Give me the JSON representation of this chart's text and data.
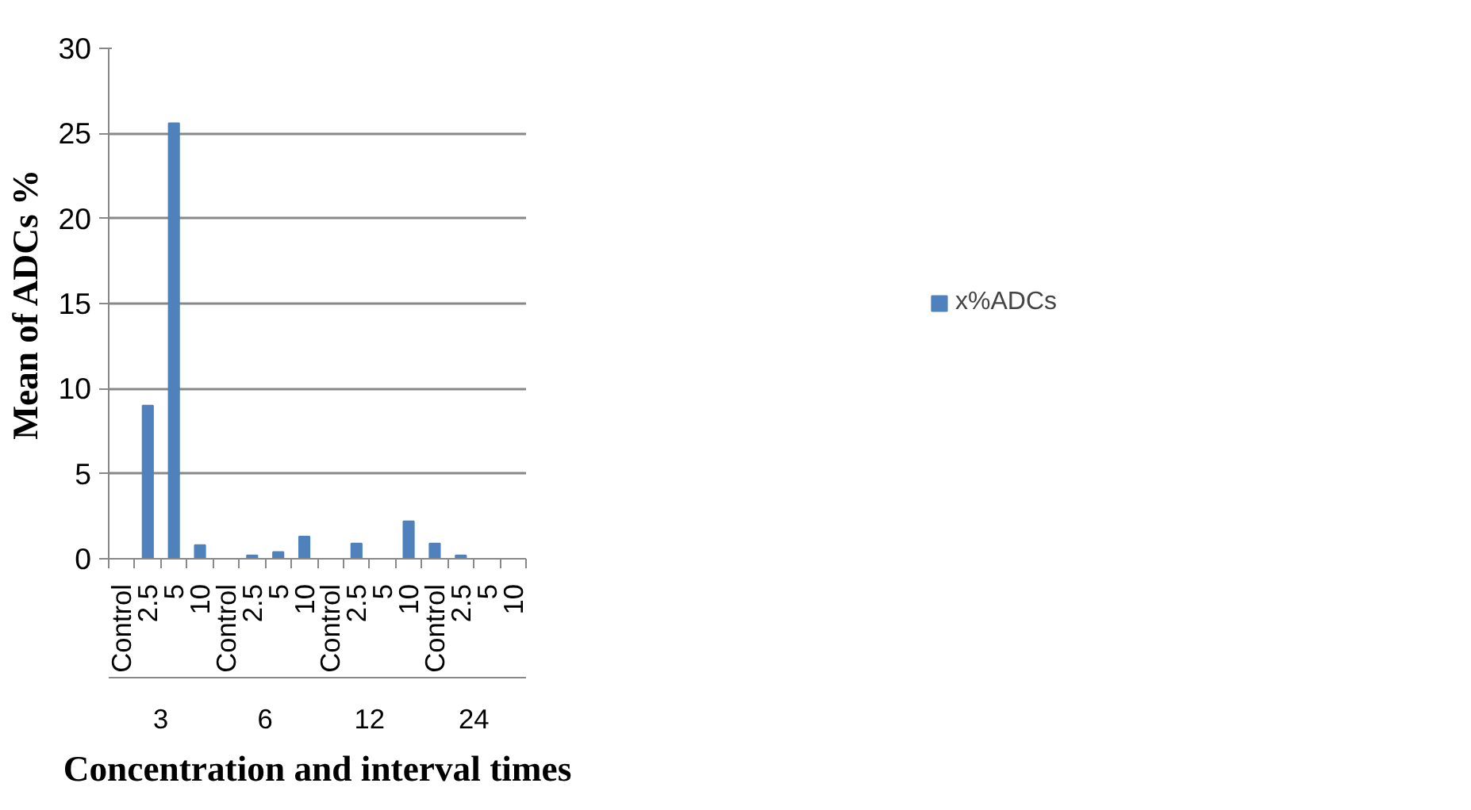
{
  "chart_data": {
    "type": "bar",
    "xlabel": "Concentration and interval times",
    "ylabel": "Mean of ADCs %",
    "categories": [
      "Control",
      "2.5",
      "5",
      "10",
      "Control",
      "2.5",
      "5",
      "10",
      "Control",
      "2.5",
      "5",
      "10",
      "Control",
      "2.5",
      "5",
      "10"
    ],
    "annotations": [
      "3",
      "6",
      "12",
      "24"
    ],
    "series": [
      {
        "name": "x%ADCs",
        "color": "#4f81bd",
        "values": [
          0,
          9.0,
          25.6,
          0.8,
          0,
          0.2,
          0.4,
          1.3,
          0,
          0.9,
          0,
          2.2,
          0.9,
          0.2,
          0,
          0
        ]
      }
    ],
    "ylim": [
      0,
      30
    ],
    "yticks": [
      0,
      5,
      10,
      15,
      20,
      25,
      30
    ],
    "grid": "y",
    "legend": "right"
  }
}
